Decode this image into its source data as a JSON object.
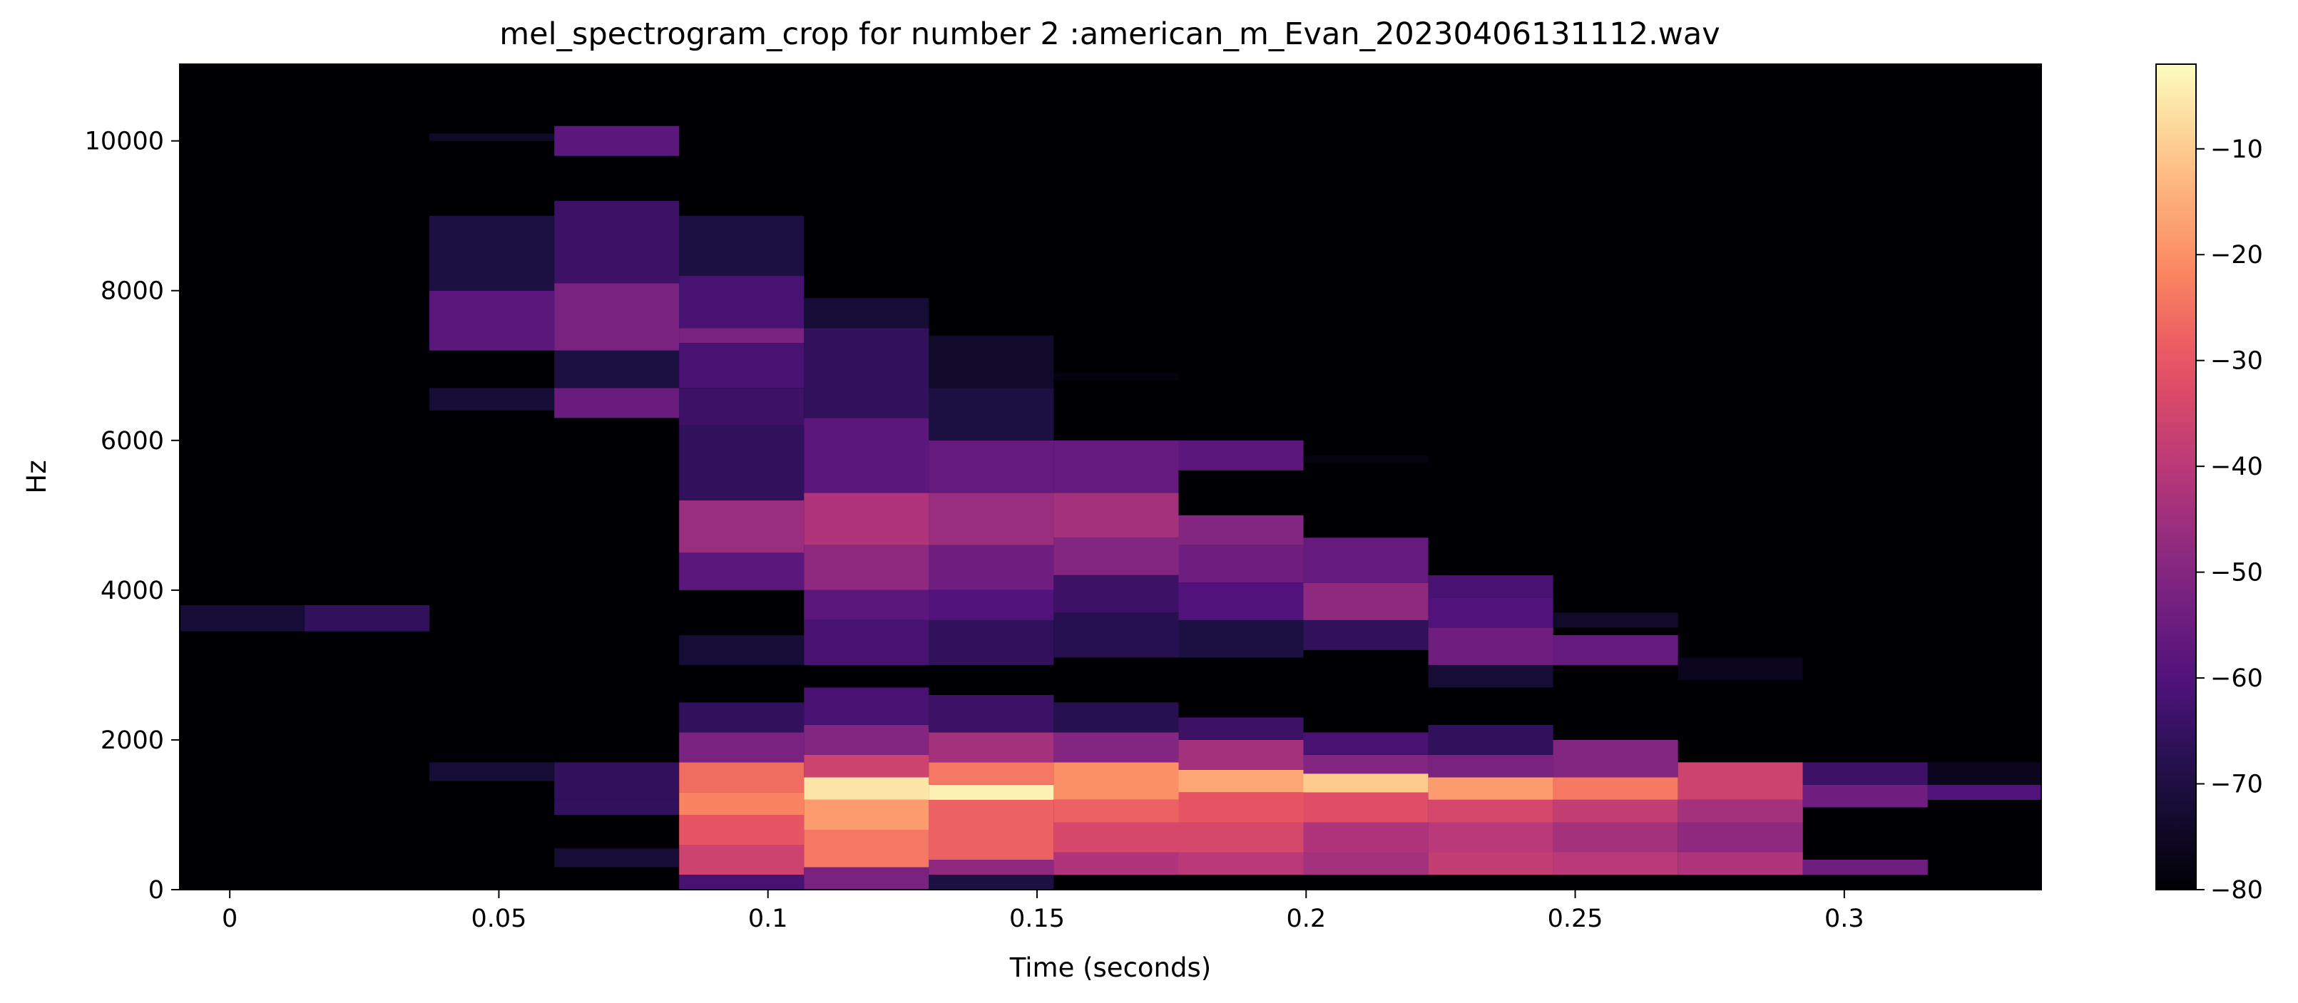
{
  "chart_data": {
    "type": "heatmap",
    "title": "mel_spectrogram_crop for number 2 :american_m_Evan_20230406131112.wav",
    "xlabel": "Time (seconds)",
    "ylabel": "Hz",
    "xlim": [
      -0.0093,
      0.3366
    ],
    "ylim": [
      0,
      11025
    ],
    "x_ticks": [
      {
        "value": 0,
        "label": "0"
      },
      {
        "value": 0.05,
        "label": "0.05"
      },
      {
        "value": 0.1,
        "label": "0.1"
      },
      {
        "value": 0.15,
        "label": "0.15"
      },
      {
        "value": 0.2,
        "label": "0.2"
      },
      {
        "value": 0.25,
        "label": "0.25"
      },
      {
        "value": 0.3,
        "label": "0.3"
      }
    ],
    "y_ticks": [
      {
        "value": 0,
        "label": "0"
      },
      {
        "value": 2000,
        "label": "2000"
      },
      {
        "value": 4000,
        "label": "4000"
      },
      {
        "value": 6000,
        "label": "6000"
      },
      {
        "value": 8000,
        "label": "8000"
      },
      {
        "value": 10000,
        "label": "10000"
      }
    ],
    "colorbar": {
      "colormap": "magma",
      "min": -80,
      "max": -2,
      "ticks": [
        {
          "value": -10,
          "label": "−10"
        },
        {
          "value": -20,
          "label": "−20"
        },
        {
          "value": -30,
          "label": "−30"
        },
        {
          "value": -40,
          "label": "−40"
        },
        {
          "value": -50,
          "label": "−50"
        },
        {
          "value": -60,
          "label": "−60"
        },
        {
          "value": -70,
          "label": "−70"
        },
        {
          "value": -80,
          "label": "−80"
        }
      ]
    },
    "background_db": -80,
    "frame_step_s": 0.0232,
    "frames": [
      {
        "t0": -0.0093,
        "bands": [
          [
            3450,
            3800,
            -72
          ]
        ]
      },
      {
        "t0": 0.0139,
        "bands": [
          [
            3450,
            3800,
            -66
          ]
        ]
      },
      {
        "t0": 0.0371,
        "bands": [
          [
            1450,
            1700,
            -72
          ],
          [
            6400,
            6700,
            -72
          ],
          [
            7200,
            8000,
            -58
          ],
          [
            8000,
            9000,
            -70
          ],
          [
            10000,
            10100,
            -74
          ]
        ]
      },
      {
        "t0": 0.0603,
        "bands": [
          [
            1000,
            1200,
            -66
          ],
          [
            1200,
            1700,
            -66
          ],
          [
            300,
            550,
            -72
          ],
          [
            6300,
            6700,
            -55
          ],
          [
            6700,
            7200,
            -70
          ],
          [
            7200,
            8100,
            -52
          ],
          [
            8100,
            9200,
            -64
          ],
          [
            9800,
            10200,
            -58
          ]
        ]
      },
      {
        "t0": 0.0835,
        "bands": [
          [
            0,
            200,
            -62
          ],
          [
            200,
            600,
            -36
          ],
          [
            600,
            1000,
            -30
          ],
          [
            1000,
            1300,
            -22
          ],
          [
            1300,
            1700,
            -26
          ],
          [
            1700,
            2100,
            -52
          ],
          [
            2100,
            2500,
            -66
          ],
          [
            3000,
            3400,
            -72
          ],
          [
            4000,
            4500,
            -58
          ],
          [
            4500,
            5200,
            -46
          ],
          [
            5200,
            6200,
            -66
          ],
          [
            6200,
            6700,
            -64
          ],
          [
            6700,
            7300,
            -62
          ],
          [
            7300,
            7500,
            -52
          ],
          [
            7500,
            8200,
            -62
          ],
          [
            8200,
            9000,
            -70
          ]
        ]
      },
      {
        "t0": 0.1067,
        "bands": [
          [
            0,
            300,
            -52
          ],
          [
            300,
            800,
            -24
          ],
          [
            800,
            1200,
            -18
          ],
          [
            1200,
            1500,
            -6
          ],
          [
            1500,
            1800,
            -36
          ],
          [
            1800,
            2200,
            -50
          ],
          [
            2200,
            2700,
            -62
          ],
          [
            3000,
            3600,
            -62
          ],
          [
            3600,
            4000,
            -58
          ],
          [
            4000,
            4600,
            -48
          ],
          [
            4600,
            5300,
            -42
          ],
          [
            5300,
            6300,
            -58
          ],
          [
            6300,
            7500,
            -66
          ],
          [
            7500,
            7900,
            -72
          ]
        ]
      },
      {
        "t0": 0.1299,
        "bands": [
          [
            0,
            200,
            -70
          ],
          [
            200,
            400,
            -48
          ],
          [
            400,
            900,
            -28
          ],
          [
            900,
            1200,
            -28
          ],
          [
            1200,
            1400,
            -4
          ],
          [
            1400,
            1700,
            -24
          ],
          [
            1700,
            2100,
            -44
          ],
          [
            2100,
            2600,
            -64
          ],
          [
            3000,
            3600,
            -66
          ],
          [
            3600,
            4000,
            -60
          ],
          [
            4000,
            4600,
            -54
          ],
          [
            4600,
            5300,
            -46
          ],
          [
            5300,
            6000,
            -56
          ],
          [
            6000,
            6700,
            -70
          ],
          [
            6700,
            7400,
            -74
          ]
        ]
      },
      {
        "t0": 0.1531,
        "bands": [
          [
            200,
            500,
            -42
          ],
          [
            500,
            900,
            -34
          ],
          [
            900,
            1200,
            -28
          ],
          [
            1200,
            1700,
            -20
          ],
          [
            1700,
            2100,
            -50
          ],
          [
            2100,
            2500,
            -68
          ],
          [
            3100,
            3700,
            -68
          ],
          [
            3700,
            4200,
            -64
          ],
          [
            4200,
            4700,
            -50
          ],
          [
            4700,
            5300,
            -44
          ],
          [
            5300,
            6000,
            -56
          ],
          [
            6800,
            6900,
            -78
          ]
        ]
      },
      {
        "t0": 0.1763,
        "bands": [
          [
            200,
            500,
            -40
          ],
          [
            500,
            900,
            -34
          ],
          [
            900,
            1300,
            -30
          ],
          [
            1300,
            1600,
            -16
          ],
          [
            1600,
            2000,
            -44
          ],
          [
            2000,
            2300,
            -64
          ],
          [
            3100,
            3600,
            -70
          ],
          [
            3600,
            4100,
            -60
          ],
          [
            4100,
            4600,
            -54
          ],
          [
            4600,
            5000,
            -50
          ],
          [
            5600,
            6000,
            -58
          ]
        ]
      },
      {
        "t0": 0.1995,
        "bands": [
          [
            200,
            500,
            -44
          ],
          [
            500,
            900,
            -42
          ],
          [
            900,
            1300,
            -32
          ],
          [
            1300,
            1550,
            -10
          ],
          [
            1550,
            1800,
            -50
          ],
          [
            1800,
            2100,
            -62
          ],
          [
            3200,
            3600,
            -66
          ],
          [
            3600,
            4100,
            -48
          ],
          [
            4100,
            4700,
            -56
          ],
          [
            5700,
            5800,
            -78
          ]
        ]
      },
      {
        "t0": 0.2227,
        "bands": [
          [
            200,
            500,
            -38
          ],
          [
            500,
            900,
            -40
          ],
          [
            900,
            1200,
            -34
          ],
          [
            1200,
            1500,
            -18
          ],
          [
            1500,
            1800,
            -52
          ],
          [
            1800,
            2200,
            -66
          ],
          [
            2700,
            3000,
            -72
          ],
          [
            3000,
            3500,
            -54
          ],
          [
            3500,
            3900,
            -60
          ],
          [
            3900,
            4200,
            -62
          ]
        ]
      },
      {
        "t0": 0.2459,
        "bands": [
          [
            200,
            500,
            -40
          ],
          [
            500,
            900,
            -44
          ],
          [
            900,
            1200,
            -38
          ],
          [
            1200,
            1500,
            -24
          ],
          [
            1500,
            2000,
            -50
          ],
          [
            3000,
            3400,
            -56
          ],
          [
            3500,
            3700,
            -74
          ]
        ]
      },
      {
        "t0": 0.2691,
        "bands": [
          [
            200,
            500,
            -42
          ],
          [
            500,
            900,
            -48
          ],
          [
            900,
            1200,
            -44
          ],
          [
            1200,
            1700,
            -36
          ],
          [
            2800,
            3100,
            -76
          ]
        ]
      },
      {
        "t0": 0.2923,
        "bands": [
          [
            200,
            400,
            -54
          ],
          [
            1100,
            1400,
            -54
          ],
          [
            1400,
            1700,
            -64
          ]
        ]
      },
      {
        "t0": 0.3155,
        "bands": [
          [
            1200,
            1400,
            -60
          ],
          [
            1400,
            1700,
            -76
          ]
        ]
      }
    ]
  }
}
